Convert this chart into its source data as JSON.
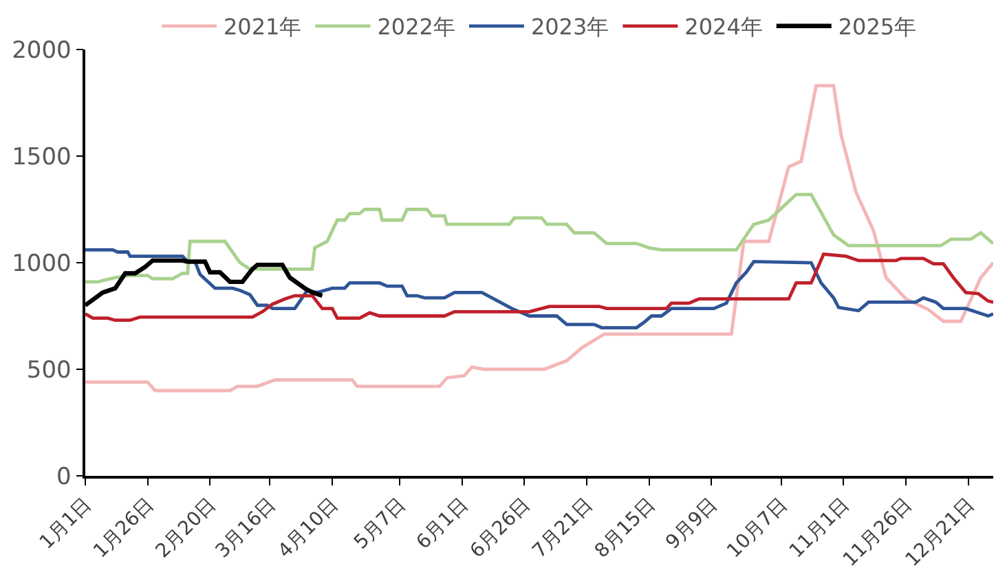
{
  "chart_data": {
    "type": "line",
    "legend": "top",
    "grid": false,
    "marker": "none",
    "line_style": "solid",
    "ylim": [
      0,
      2000
    ],
    "yticks": [
      0,
      500,
      1000,
      1500,
      2000
    ],
    "xlim": [
      "--01-01",
      "--12-31"
    ],
    "xticks": [
      {
        "value": "--01-01",
        "label": "1月1日"
      },
      {
        "value": "--01-26",
        "label": "1月26日"
      },
      {
        "value": "--02-20",
        "label": "2月20日"
      },
      {
        "value": "--03-16",
        "label": "3月16日"
      },
      {
        "value": "--04-10",
        "label": "4月10日"
      },
      {
        "value": "--05-07",
        "label": "5月7日"
      },
      {
        "value": "--06-01",
        "label": "6月1日"
      },
      {
        "value": "--06-26",
        "label": "6月26日"
      },
      {
        "value": "--07-21",
        "label": "7月21日"
      },
      {
        "value": "--08-15",
        "label": "8月15日"
      },
      {
        "value": "--09-09",
        "label": "9月9日"
      },
      {
        "value": "--10-07",
        "label": "10月7日"
      },
      {
        "value": "--11-01",
        "label": "11月1日"
      },
      {
        "value": "--11-26",
        "label": "11月26日"
      },
      {
        "value": "--12-21",
        "label": "12月21日"
      }
    ],
    "series": [
      {
        "name": "2021年",
        "color": "#f4b6b8",
        "x": [
          "--01-01",
          "--01-26",
          "--01-29",
          "--02-28",
          "--03-03",
          "--03-11",
          "--03-18",
          "--04-18",
          "--04-20",
          "--05-23",
          "--05-26",
          "--06-02",
          "--06-05",
          "--06-10",
          "--07-04",
          "--07-13",
          "--07-19",
          "--07-28",
          "--09-17",
          "--09-22",
          "--10-02",
          "--10-10",
          "--10-15",
          "--10-21",
          "--10-28",
          "--10-31",
          "--11-06",
          "--11-13",
          "--11-18",
          "--11-26",
          "--12-05",
          "--12-11",
          "--12-18",
          "--12-26",
          "--12-31"
        ],
        "values": [
          440,
          440,
          400,
          400,
          420,
          420,
          450,
          450,
          420,
          420,
          460,
          470,
          510,
          500,
          500,
          540,
          600,
          665,
          665,
          1100,
          1100,
          1450,
          1475,
          1830,
          1830,
          1600,
          1330,
          1150,
          930,
          830,
          780,
          725,
          725,
          930,
          1000
        ]
      },
      {
        "name": "2022年",
        "color": "#a9d18e",
        "x": [
          "--01-01",
          "--01-06",
          "--01-13",
          "--01-19",
          "--01-26",
          "--01-28",
          "--02-05",
          "--02-09",
          "--02-11",
          "--02-12",
          "--02-26",
          "--03-04",
          "--03-08",
          "--04-02",
          "--04-03",
          "--04-08",
          "--04-12",
          "--04-15",
          "--04-17",
          "--04-21",
          "--04-23",
          "--04-29",
          "--04-30",
          "--05-08",
          "--05-10",
          "--05-18",
          "--05-20",
          "--05-25",
          "--05-26",
          "--06-20",
          "--06-22",
          "--07-03",
          "--07-05",
          "--07-13",
          "--07-16",
          "--07-24",
          "--07-29",
          "--08-10",
          "--08-15",
          "--08-20",
          "--09-19",
          "--09-26",
          "--10-02",
          "--10-13",
          "--10-19",
          "--10-28",
          "--11-03",
          "--12-10",
          "--12-14",
          "--12-22",
          "--12-26",
          "--12-31"
        ],
        "values": [
          910,
          910,
          930,
          940,
          940,
          925,
          925,
          950,
          950,
          1100,
          1100,
          1000,
          970,
          970,
          1070,
          1100,
          1200,
          1200,
          1230,
          1230,
          1250,
          1250,
          1200,
          1200,
          1250,
          1250,
          1220,
          1220,
          1180,
          1180,
          1210,
          1210,
          1180,
          1180,
          1140,
          1140,
          1090,
          1090,
          1070,
          1060,
          1060,
          1180,
          1200,
          1320,
          1320,
          1130,
          1080,
          1080,
          1110,
          1110,
          1140,
          1090
        ]
      },
      {
        "name": "2023年",
        "color": "#2f5597",
        "x": [
          "--01-01",
          "--01-12",
          "--01-14",
          "--01-18",
          "--01-19",
          "--02-09",
          "--02-11",
          "--02-14",
          "--02-16",
          "--02-22",
          "--03-01",
          "--03-04",
          "--03-08",
          "--03-11",
          "--03-15",
          "--03-17",
          "--03-26",
          "--03-31",
          "--04-04",
          "--04-10",
          "--04-15",
          "--04-17",
          "--04-29",
          "--05-02",
          "--05-08",
          "--05-10",
          "--05-14",
          "--05-17",
          "--05-25",
          "--05-29",
          "--06-09",
          "--06-17",
          "--06-21",
          "--06-28",
          "--07-09",
          "--07-13",
          "--07-24",
          "--07-27",
          "--08-10",
          "--08-13",
          "--08-16",
          "--08-20",
          "--08-24",
          "--09-10",
          "--09-15",
          "--09-19",
          "--09-23",
          "--09-26",
          "--10-19",
          "--10-23",
          "--10-28",
          "--10-30",
          "--11-07",
          "--11-11",
          "--11-30",
          "--12-03",
          "--12-08",
          "--12-11",
          "--12-20",
          "--12-29",
          "--12-31"
        ],
        "values": [
          1060,
          1060,
          1050,
          1050,
          1030,
          1030,
          1005,
          1005,
          945,
          880,
          880,
          870,
          850,
          800,
          800,
          785,
          785,
          870,
          860,
          880,
          880,
          905,
          905,
          890,
          890,
          845,
          845,
          835,
          835,
          860,
          860,
          810,
          785,
          750,
          750,
          710,
          710,
          695,
          695,
          720,
          750,
          750,
          785,
          785,
          810,
          905,
          955,
          1005,
          1000,
          905,
          835,
          790,
          775,
          815,
          815,
          835,
          815,
          785,
          785,
          750,
          760
        ]
      },
      {
        "name": "2024年",
        "color": "#c0202a",
        "x": [
          "--01-01",
          "--01-04",
          "--01-10",
          "--01-13",
          "--01-19",
          "--01-23",
          "--03-09",
          "--03-13",
          "--03-17",
          "--03-22",
          "--03-26",
          "--04-02",
          "--04-06",
          "--04-10",
          "--04-12",
          "--04-21",
          "--04-25",
          "--04-29",
          "--05-25",
          "--05-29",
          "--06-28",
          "--07-06",
          "--07-26",
          "--07-29",
          "--08-22",
          "--08-24",
          "--08-31",
          "--09-04",
          "--10-10",
          "--10-13",
          "--10-19",
          "--10-24",
          "--11-02",
          "--11-07",
          "--11-22",
          "--11-24",
          "--12-03",
          "--12-07",
          "--12-11",
          "--12-15",
          "--12-20",
          "--12-25",
          "--12-29",
          "--12-31"
        ],
        "values": [
          760,
          740,
          740,
          730,
          730,
          745,
          745,
          770,
          805,
          830,
          845,
          845,
          785,
          785,
          740,
          740,
          765,
          750,
          750,
          770,
          770,
          795,
          795,
          785,
          785,
          810,
          810,
          830,
          830,
          905,
          905,
          1040,
          1030,
          1010,
          1010,
          1020,
          1020,
          995,
          995,
          930,
          860,
          855,
          820,
          815
        ]
      },
      {
        "name": "2025年",
        "color": "#000000",
        "x": [
          "--01-01",
          "--01-08",
          "--01-13",
          "--01-17",
          "--01-21",
          "--01-25",
          "--01-28",
          "--02-09",
          "--02-11",
          "--02-18",
          "--02-20",
          "--02-24",
          "--02-28",
          "--03-05",
          "--03-09",
          "--03-11",
          "--03-21",
          "--03-24",
          "--03-30",
          "--04-02",
          "--04-06"
        ],
        "values": [
          800,
          860,
          880,
          950,
          950,
          980,
          1010,
          1010,
          1005,
          1005,
          955,
          955,
          910,
          910,
          970,
          990,
          990,
          930,
          880,
          860,
          845
        ]
      }
    ]
  }
}
